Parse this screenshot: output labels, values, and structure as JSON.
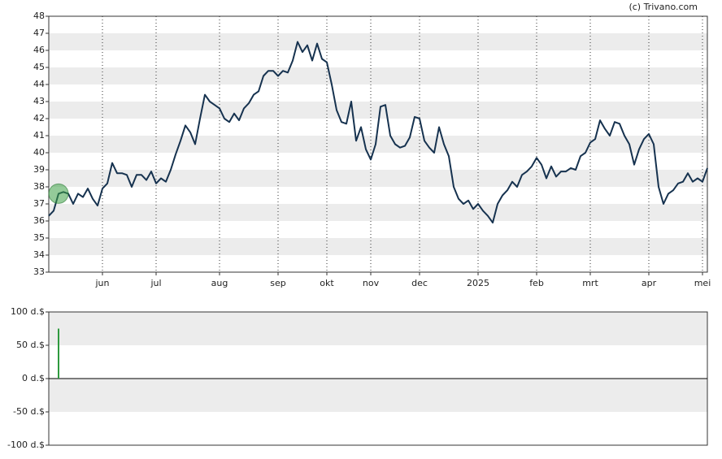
{
  "credit": "(c) Trivano.com",
  "chart_data": [
    {
      "type": "line",
      "categories": [
        null,
        null,
        null,
        null,
        null,
        null,
        null,
        null,
        null,
        null,
        null,
        "jun",
        null,
        null,
        null,
        null,
        null,
        null,
        null,
        null,
        null,
        null,
        "jul",
        null,
        null,
        null,
        null,
        null,
        null,
        null,
        null,
        null,
        null,
        null,
        null,
        "aug",
        null,
        null,
        null,
        null,
        null,
        null,
        null,
        null,
        null,
        null,
        null,
        "sep",
        null,
        null,
        null,
        null,
        null,
        null,
        null,
        null,
        null,
        "okt",
        null,
        null,
        null,
        null,
        null,
        null,
        null,
        null,
        "nov",
        null,
        null,
        null,
        null,
        null,
        null,
        null,
        null,
        null,
        "dec",
        null,
        null,
        null,
        null,
        null,
        null,
        null,
        null,
        null,
        null,
        null,
        "2025",
        null,
        null,
        null,
        null,
        null,
        null,
        null,
        null,
        null,
        null,
        null,
        "feb",
        null,
        null,
        null,
        null,
        null,
        null,
        null,
        null,
        null,
        null,
        "mrt",
        null,
        null,
        null,
        null,
        null,
        null,
        null,
        null,
        null,
        null,
        null,
        "apr",
        null,
        null,
        null,
        null,
        null,
        null,
        null,
        null,
        null,
        null,
        "mei",
        null
      ],
      "values": [
        36.3,
        36.6,
        37.6,
        37.7,
        37.6,
        37.0,
        37.6,
        37.4,
        37.9,
        37.3,
        36.9,
        37.9,
        38.2,
        39.4,
        38.8,
        38.8,
        38.7,
        38.0,
        38.7,
        38.7,
        38.4,
        38.9,
        38.2,
        38.5,
        38.3,
        39.0,
        39.9,
        40.7,
        41.6,
        41.2,
        40.5,
        42.0,
        43.4,
        43.0,
        42.8,
        42.6,
        42.0,
        41.8,
        42.3,
        41.9,
        42.6,
        42.9,
        43.4,
        43.6,
        44.5,
        44.8,
        44.8,
        44.5,
        44.8,
        44.7,
        45.4,
        46.5,
        45.9,
        46.3,
        45.4,
        46.4,
        45.5,
        45.3,
        44.0,
        42.5,
        41.8,
        41.7,
        43.0,
        40.7,
        41.5,
        40.2,
        39.6,
        40.5,
        42.7,
        42.8,
        41.0,
        40.5,
        40.3,
        40.4,
        40.9,
        42.1,
        42.0,
        40.7,
        40.3,
        40.0,
        41.5,
        40.5,
        39.8,
        38.0,
        37.3,
        37.0,
        37.2,
        36.7,
        37.0,
        36.6,
        36.3,
        35.9,
        37.0,
        37.5,
        37.8,
        38.3,
        38.0,
        38.7,
        38.9,
        39.2,
        39.7,
        39.3,
        38.5,
        39.2,
        38.6,
        38.9,
        38.9,
        39.1,
        39.0,
        39.8,
        40.0,
        40.6,
        40.8,
        41.9,
        41.4,
        41.0,
        41.8,
        41.7,
        41.0,
        40.5,
        39.3,
        40.2,
        40.8,
        41.1,
        40.5,
        38.0,
        37.0,
        37.6,
        37.8,
        38.2,
        38.3,
        38.8,
        38.3,
        38.5,
        38.3,
        39.1
      ],
      "color": "#16324f",
      "ylim": [
        33,
        48
      ],
      "yticks": [
        33,
        34,
        35,
        36,
        37,
        38,
        39,
        40,
        41,
        42,
        43,
        44,
        45,
        46,
        47,
        48
      ]
    },
    {
      "type": "bar",
      "values": [
        null,
        null,
        75,
        null,
        null,
        null,
        null,
        null,
        null,
        null,
        null,
        null,
        null,
        null,
        null,
        null,
        null,
        null,
        null,
        null,
        null,
        null,
        null,
        null,
        null,
        null,
        null,
        null,
        null,
        null,
        null,
        null,
        null,
        null,
        null,
        null,
        null,
        null,
        null,
        null,
        null,
        null,
        null,
        null,
        null,
        null,
        null,
        null,
        null,
        null,
        null,
        null,
        null,
        null,
        null,
        null,
        null,
        null,
        null,
        null,
        null,
        null,
        null,
        null,
        null,
        null,
        null,
        null,
        null,
        null,
        null,
        null,
        null,
        null,
        null,
        null,
        null,
        null,
        null,
        null,
        null,
        null,
        null,
        null,
        null,
        null,
        null,
        null,
        null,
        null,
        null,
        null,
        null,
        null,
        null,
        null,
        null,
        null,
        null,
        null,
        null,
        null,
        null,
        null,
        null,
        null,
        null,
        null,
        null,
        null,
        null,
        null,
        null,
        null,
        null,
        null,
        null,
        null,
        null,
        null,
        null,
        null,
        null,
        null,
        null,
        null,
        null,
        null,
        null,
        null,
        null,
        null,
        null,
        null,
        null,
        null
      ],
      "color": "#2e9a3e",
      "ylim": [
        -100,
        100
      ],
      "yticks": [
        {
          "value": -100,
          "label": "-100 d.$"
        },
        {
          "value": -50,
          "label": "-50 d.$"
        },
        {
          "value": 0,
          "label": "0 d.$"
        },
        {
          "value": 50,
          "label": "50 d.$"
        },
        {
          "value": 100,
          "label": "100 d.$"
        }
      ]
    }
  ]
}
